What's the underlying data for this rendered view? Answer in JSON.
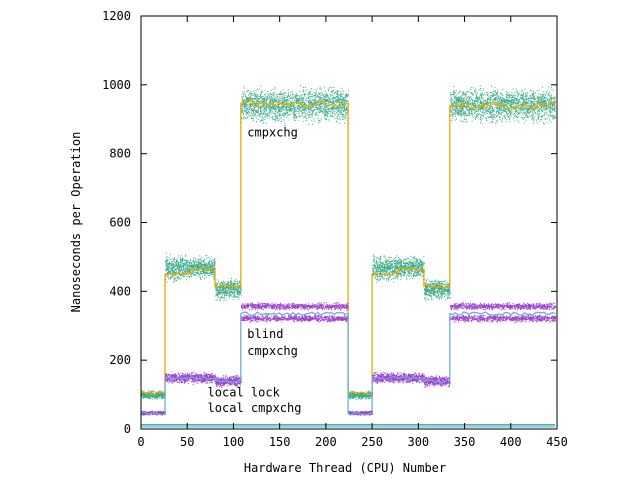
{
  "chart_data": {
    "type": "scatter",
    "title": "",
    "xlabel": "Hardware Thread (CPU) Number",
    "ylabel": "Nanoseconds per Operation",
    "xlim": [
      0,
      450
    ],
    "ylim": [
      0,
      1200
    ],
    "xticks": [
      0,
      50,
      100,
      150,
      200,
      250,
      300,
      350,
      400,
      450
    ],
    "yticks": [
      0,
      200,
      400,
      600,
      800,
      1000,
      1200
    ],
    "grid": false,
    "legend": "none",
    "colors": {
      "cmpxchg_points": "#1a9e77",
      "cmpxchg_median": "#e6ab02",
      "blind_points": "#8e1fc9",
      "blind_median": "#6baed6",
      "local_lock": "#1a9e77",
      "local_cmpxchg": "#56b4e9"
    },
    "annotations": [
      {
        "text": "cmpxchg",
        "x": 115,
        "y": 850
      },
      {
        "text": "blind",
        "x": 115,
        "y": 265
      },
      {
        "text": "cmpxchg",
        "x": 115,
        "y": 215
      },
      {
        "text": "local lock",
        "x": 72,
        "y": 95
      },
      {
        "text": "local cmpxchg",
        "x": 72,
        "y": 50
      }
    ],
    "series": [
      {
        "name": "cmpxchg",
        "style": "scatter-band-with-median",
        "segments": [
          {
            "x0": 0,
            "x1": 26,
            "bands": [
              [
                85,
                115
              ]
            ],
            "median": 105
          },
          {
            "x0": 26,
            "x1": 54,
            "bands": [
              [
                420,
                515
              ]
            ],
            "median": 450
          },
          {
            "x0": 54,
            "x1": 80,
            "bands": [
              [
                430,
                510
              ]
            ],
            "median": 465
          },
          {
            "x0": 80,
            "x1": 108,
            "bands": [
              [
                370,
                445
              ]
            ],
            "median": 415
          },
          {
            "x0": 108,
            "x1": 224,
            "bands": [
              [
                880,
                1005
              ]
            ],
            "median": 945
          },
          {
            "x0": 224,
            "x1": 250,
            "bands": [
              [
                85,
                115
              ]
            ],
            "median": 105
          },
          {
            "x0": 250,
            "x1": 278,
            "bands": [
              [
                420,
                515
              ]
            ],
            "median": 450
          },
          {
            "x0": 278,
            "x1": 306,
            "bands": [
              [
                430,
                510
              ]
            ],
            "median": 465
          },
          {
            "x0": 306,
            "x1": 334,
            "bands": [
              [
                370,
                445
              ]
            ],
            "median": 415
          },
          {
            "x0": 334,
            "x1": 448,
            "bands": [
              [
                880,
                1005
              ]
            ],
            "median": 940
          }
        ]
      },
      {
        "name": "blind cmpxchg",
        "style": "scatter-band-with-median",
        "segments": [
          {
            "x0": 0,
            "x1": 26,
            "bands": [
              [
                40,
                55
              ]
            ],
            "median": 45
          },
          {
            "x0": 26,
            "x1": 80,
            "bands": [
              [
                130,
                170
              ]
            ],
            "median": 148
          },
          {
            "x0": 80,
            "x1": 108,
            "bands": [
              [
                120,
                160
              ]
            ],
            "median": 140
          },
          {
            "x0": 108,
            "x1": 224,
            "bands": [
              [
                310,
                335
              ],
              [
                345,
                370
              ]
            ],
            "median": 335
          },
          {
            "x0": 224,
            "x1": 250,
            "bands": [
              [
                40,
                55
              ]
            ],
            "median": 45
          },
          {
            "x0": 250,
            "x1": 306,
            "bands": [
              [
                130,
                170
              ]
            ],
            "median": 148
          },
          {
            "x0": 306,
            "x1": 334,
            "bands": [
              [
                120,
                160
              ]
            ],
            "median": 140
          },
          {
            "x0": 334,
            "x1": 448,
            "bands": [
              [
                310,
                335
              ],
              [
                345,
                370
              ]
            ],
            "median": 335
          }
        ]
      },
      {
        "name": "local lock",
        "style": "line",
        "x": [
          0,
          448
        ],
        "y": [
          12,
          12
        ]
      },
      {
        "name": "local cmpxchg",
        "style": "line",
        "x": [
          0,
          448
        ],
        "y": [
          6,
          6
        ]
      }
    ]
  }
}
